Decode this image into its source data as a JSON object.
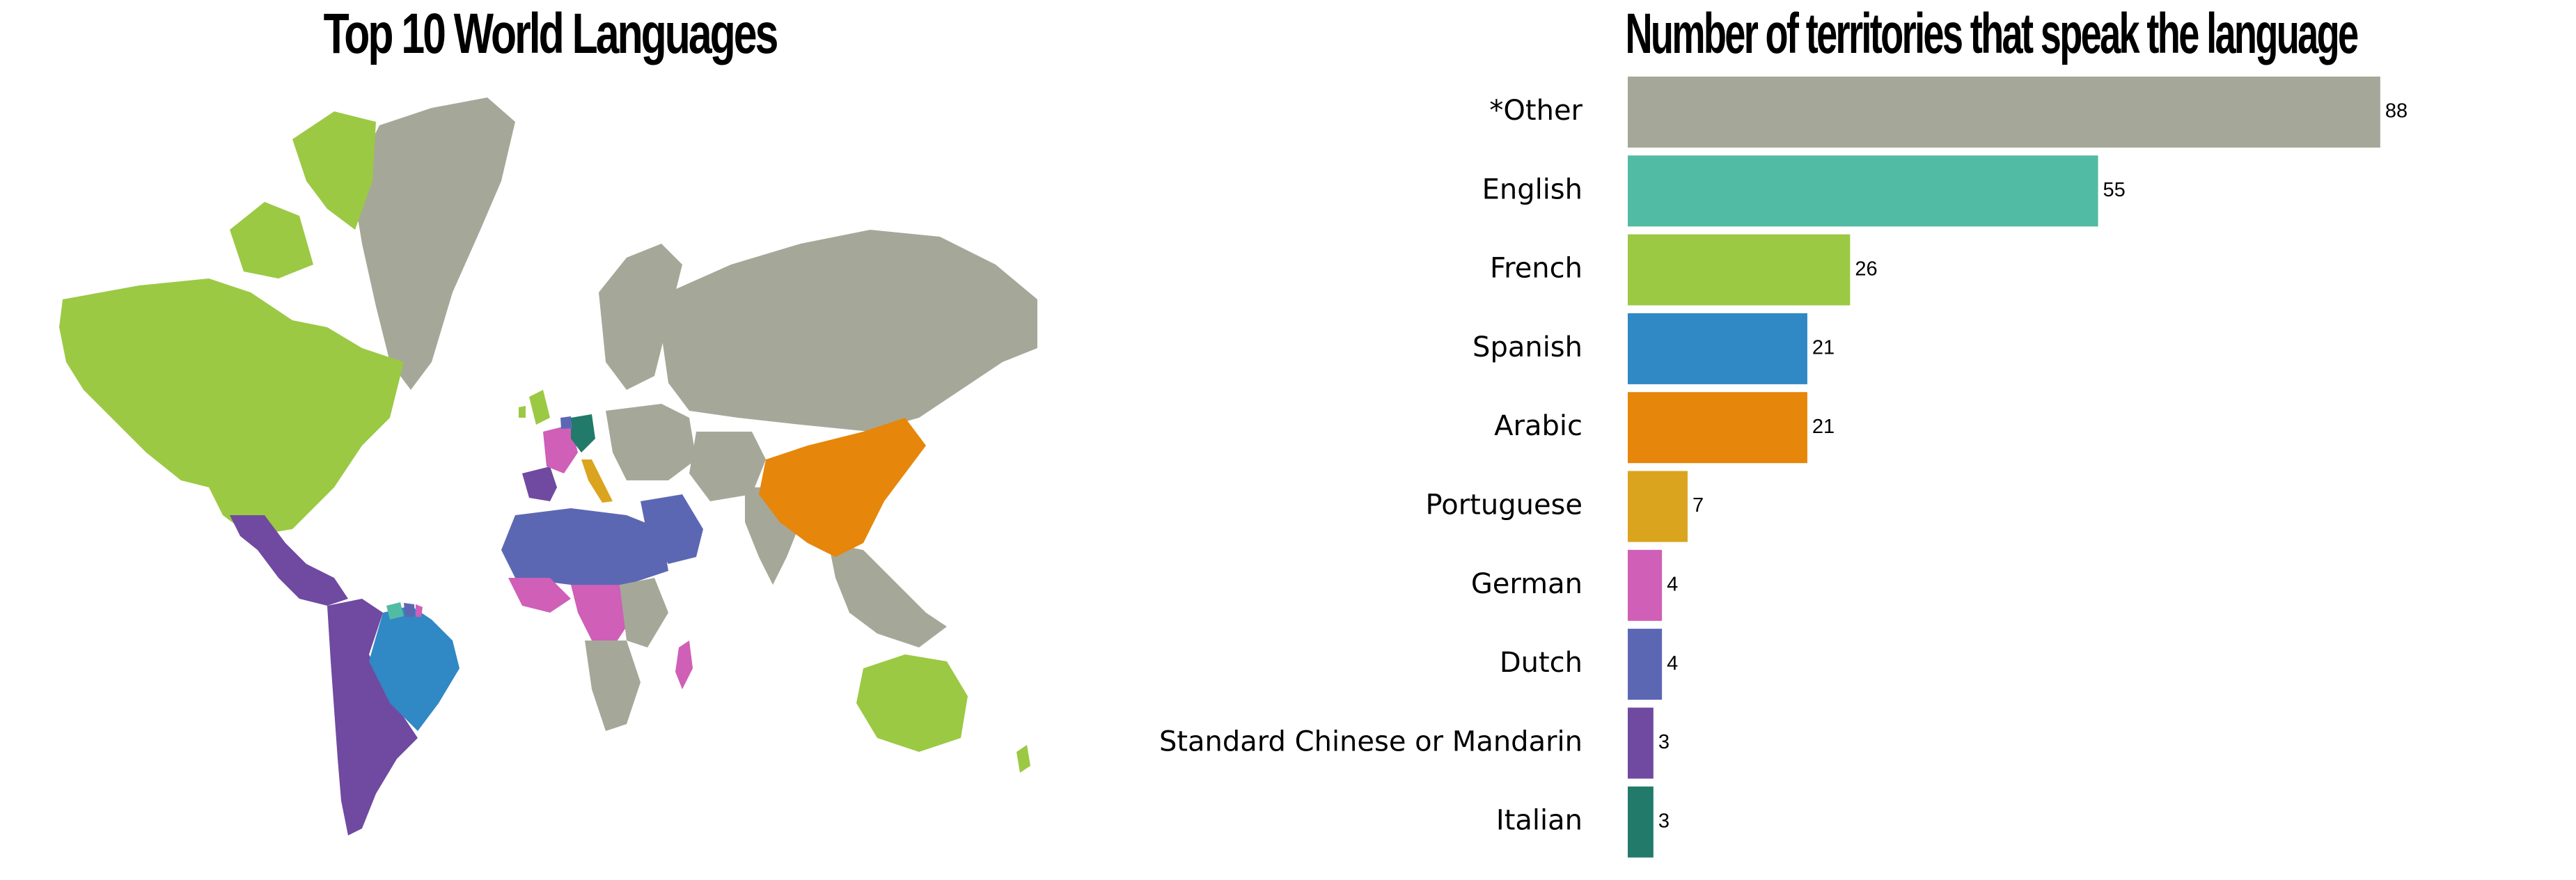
{
  "map": {
    "title": "Top 10 World Languages",
    "regions": [
      {
        "name": "Greenland",
        "language": "*Other"
      },
      {
        "name": "North America",
        "language": "French"
      },
      {
        "name": "Canadian Arctic Islands",
        "language": "French"
      },
      {
        "name": "Central America",
        "language": "Standard Chinese or Mandarin"
      },
      {
        "name": "South America West",
        "language": "Standard Chinese or Mandarin"
      },
      {
        "name": "Brazil",
        "language": "Spanish"
      },
      {
        "name": "Guyana",
        "language": "English"
      },
      {
        "name": "Suriname",
        "language": "Dutch"
      },
      {
        "name": "French Guiana",
        "language": "German"
      },
      {
        "name": "Russia",
        "language": "*Other"
      },
      {
        "name": "Scandinavia",
        "language": "*Other"
      },
      {
        "name": "Eastern Europe",
        "language": "*Other"
      },
      {
        "name": "Central Asia",
        "language": "*Other"
      },
      {
        "name": "India",
        "language": "*Other"
      },
      {
        "name": "Southeast Asia",
        "language": "*Other"
      },
      {
        "name": "China",
        "language": "Arabic"
      },
      {
        "name": "British Isles",
        "language": "French"
      },
      {
        "name": "Iberia",
        "language": "Standard Chinese or Mandarin"
      },
      {
        "name": "France",
        "language": "German"
      },
      {
        "name": "Germany",
        "language": "Italian"
      },
      {
        "name": "Benelux",
        "language": "Dutch"
      },
      {
        "name": "Italy",
        "language": "Portuguese"
      },
      {
        "name": "Northern Africa",
        "language": "Dutch"
      },
      {
        "name": "Arabia",
        "language": "Dutch"
      },
      {
        "name": "West Africa",
        "language": "German"
      },
      {
        "name": "Central Africa",
        "language": "German"
      },
      {
        "name": "East Africa",
        "language": "*Other"
      },
      {
        "name": "Southern Africa",
        "language": "*Other"
      },
      {
        "name": "Madagascar",
        "language": "German"
      },
      {
        "name": "Australia",
        "language": "French"
      },
      {
        "name": "New Zealand",
        "language": "French"
      }
    ]
  },
  "chart_data": {
    "type": "bar",
    "orientation": "horizontal",
    "title": "Number of territories that speak the language",
    "categories": [
      "*Other",
      "English",
      "French",
      "Spanish",
      "Arabic",
      "Portuguese",
      "German",
      "Dutch",
      "Standard Chinese or Mandarin",
      "Italian"
    ],
    "values": [
      88,
      55,
      26,
      21,
      21,
      7,
      4,
      4,
      3,
      3
    ],
    "colors": [
      "#a5a898",
      "#52bba3",
      "#9bc944",
      "#3088c5",
      "#e6860a",
      "#dba41f",
      "#cf5fb7",
      "#5c67b4",
      "#7049a0",
      "#227a6a"
    ],
    "xlim": [
      0,
      92
    ],
    "grid": false,
    "legend": "none",
    "data_labels": true
  }
}
